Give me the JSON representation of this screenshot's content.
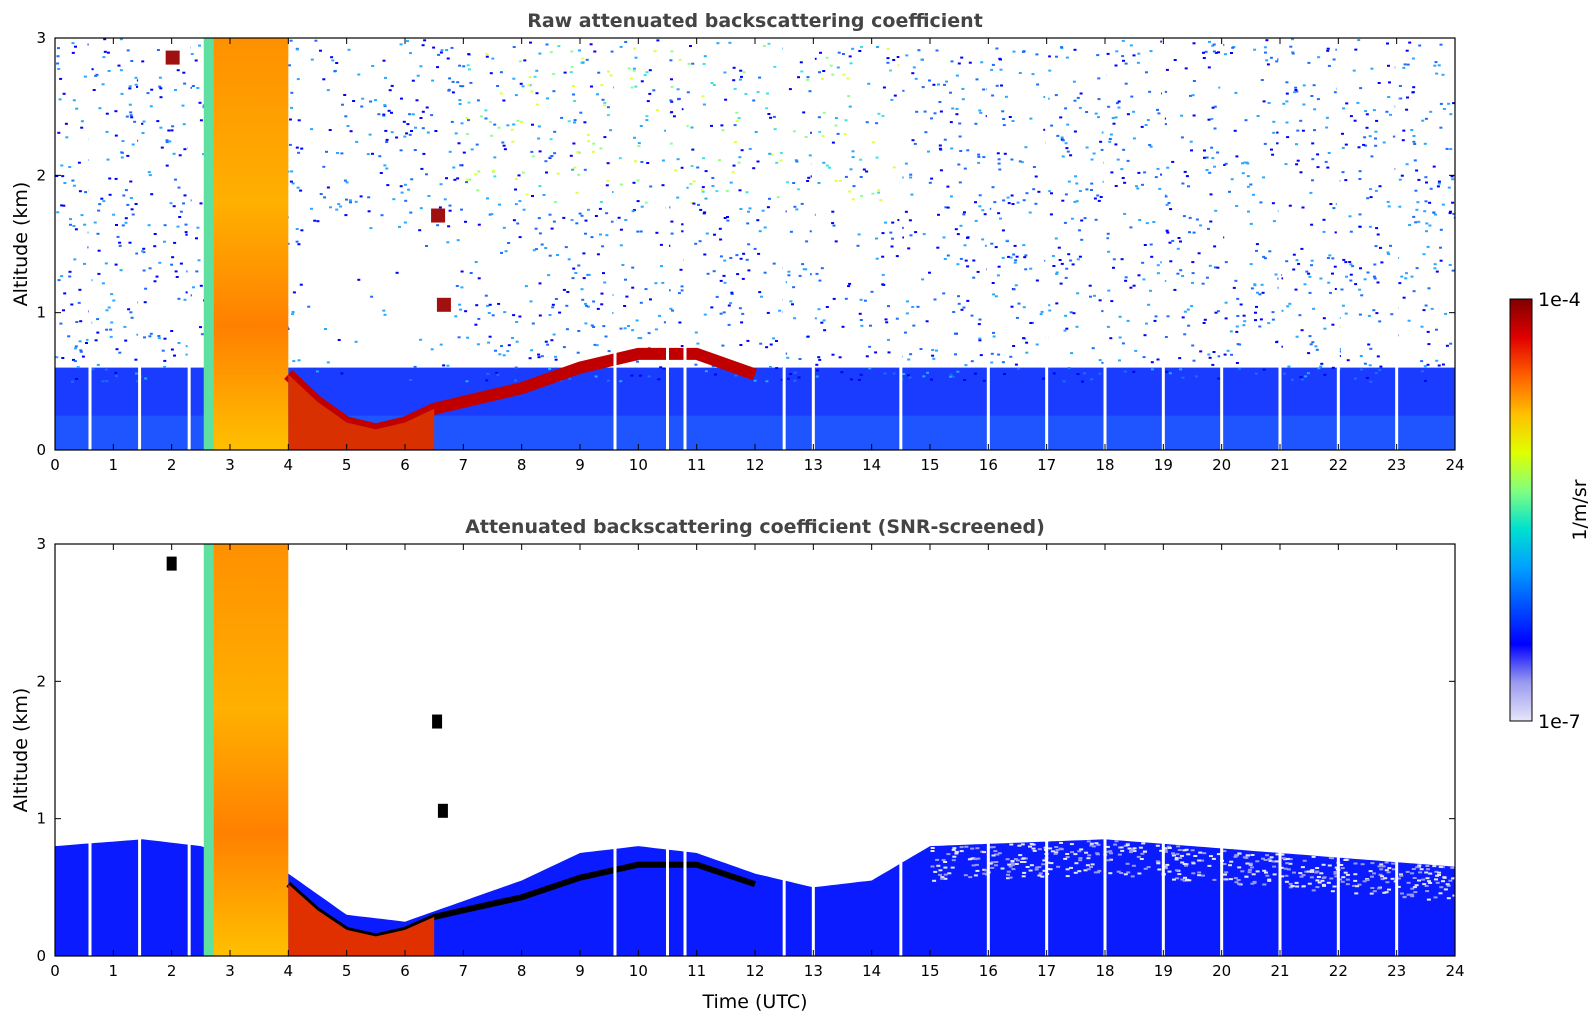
{
  "chart_data": [
    {
      "type": "heatmap",
      "title": "Raw attenuated backscattering coefficient",
      "xlabel": "",
      "ylabel": "Altitude (km)",
      "xlim": [
        0,
        24
      ],
      "ylim": [
        0,
        3
      ],
      "xticks": [
        "0",
        "1",
        "2",
        "3",
        "4",
        "5",
        "6",
        "7",
        "8",
        "9",
        "10",
        "11",
        "12",
        "13",
        "14",
        "15",
        "16",
        "17",
        "18",
        "19",
        "20",
        "21",
        "22",
        "23",
        "24"
      ],
      "yticks": [
        "0",
        "1",
        "2",
        "3"
      ],
      "grid": false,
      "data_gaps_utc": [
        0.6,
        1.45,
        2.3,
        9.6,
        10.5,
        10.8,
        12.5,
        13.0,
        14.5,
        16.0,
        17.0,
        18.0,
        19.0,
        20.0,
        21.0,
        22.0,
        23.0
      ],
      "features": [
        {
          "name": "aerosol_layer_top_km",
          "x": [
            4.0,
            4.5,
            5.0,
            5.5,
            6.0,
            6.5,
            7.0,
            8.0,
            9.0,
            10.0,
            11.0,
            12.0
          ],
          "y": [
            0.55,
            0.35,
            0.2,
            0.15,
            0.2,
            0.3,
            0.35,
            0.45,
            0.6,
            0.7,
            0.7,
            0.55
          ]
        },
        {
          "name": "strong_cloud_column",
          "x_range": [
            2.6,
            4.0
          ],
          "y_top_km": 3.0
        },
        {
          "name": "elevated_patch",
          "x": [
            6.55
          ],
          "y": [
            1.7
          ]
        },
        {
          "name": "elevated_patch",
          "x": [
            6.65
          ],
          "y": [
            1.05
          ]
        },
        {
          "name": "elevated_patch",
          "x": [
            2.0
          ],
          "y": [
            2.85
          ]
        }
      ]
    },
    {
      "type": "heatmap",
      "title": "Attenuated backscattering coefficient (SNR-screened)",
      "xlabel": "Time (UTC)",
      "ylabel": "Altitude (km)",
      "xlim": [
        0,
        24
      ],
      "ylim": [
        0,
        3
      ],
      "xticks": [
        "0",
        "1",
        "2",
        "3",
        "4",
        "5",
        "6",
        "7",
        "8",
        "9",
        "10",
        "11",
        "12",
        "13",
        "14",
        "15",
        "16",
        "17",
        "18",
        "19",
        "20",
        "21",
        "22",
        "23",
        "24"
      ],
      "yticks": [
        "0",
        "1",
        "2",
        "3"
      ],
      "grid": false,
      "screened_layer_top_km": {
        "x": [
          0,
          1.5,
          2.5,
          4.0,
          5.0,
          6.0,
          7.0,
          8.0,
          9.0,
          10.0,
          11.0,
          12.0,
          13.0,
          14.0,
          15.0,
          18.0,
          21.0,
          24.0
        ],
        "y": [
          0.8,
          0.85,
          0.8,
          0.6,
          0.3,
          0.25,
          0.4,
          0.55,
          0.75,
          0.8,
          0.75,
          0.6,
          0.5,
          0.55,
          0.8,
          0.85,
          0.75,
          0.65
        ]
      }
    }
  ],
  "colorbar": {
    "label": "1/m/sr",
    "max_label": "1e-4",
    "min_label": "1e-7",
    "scale": "log",
    "colormap": [
      "#e6e6f8",
      "#9a9af0",
      "#0000ff",
      "#0050ff",
      "#00a0ff",
      "#00e0d0",
      "#80ff80",
      "#e0ff00",
      "#ffc000",
      "#ff6000",
      "#e00000",
      "#800000"
    ]
  },
  "colors": {
    "title": "#444444",
    "axes": "#000000",
    "gap": "#ffffff",
    "black_outline": "#000000"
  }
}
